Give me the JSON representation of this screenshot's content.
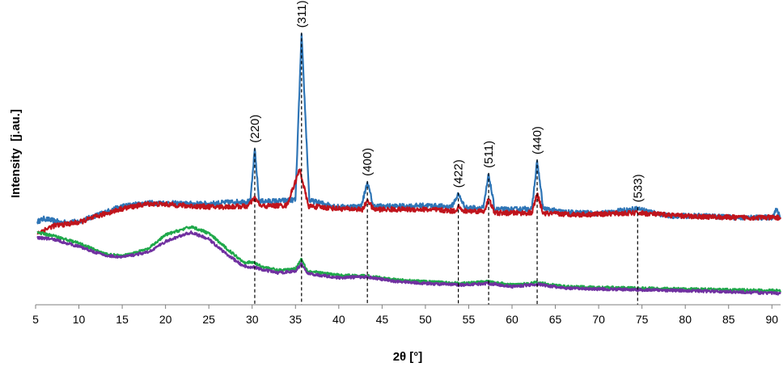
{
  "chart_data": {
    "type": "line",
    "xlabel": "2θ [°]",
    "ylabel": "Intensity  [j.au.]",
    "xlim": [
      5,
      91
    ],
    "ylim": [
      0,
      100
    ],
    "x_ticks": [
      5,
      10,
      15,
      20,
      25,
      30,
      35,
      40,
      45,
      50,
      55,
      60,
      65,
      70,
      75,
      80,
      85,
      90
    ],
    "y_tick_labels": false,
    "grid": false,
    "legend": "none",
    "peaks": [
      {
        "label": "(220)",
        "x": 30.3
      },
      {
        "label": "(311)",
        "x": 35.7
      },
      {
        "label": "(400)",
        "x": 43.3
      },
      {
        "label": "(422)",
        "x": 53.8
      },
      {
        "label": "(511)",
        "x": 57.3
      },
      {
        "label": "(440)",
        "x": 62.9
      },
      {
        "label": "(533)",
        "x": 74.5
      }
    ],
    "series": [
      {
        "color": "#2E75B6",
        "points": [
          [
            5.2,
            30.7
          ],
          [
            6,
            31.8
          ],
          [
            8,
            30.4
          ],
          [
            10,
            30.7
          ],
          [
            12,
            33
          ],
          [
            15,
            36.4
          ],
          [
            18,
            37.6
          ],
          [
            20,
            37.6
          ],
          [
            22,
            37.3
          ],
          [
            25,
            37.3
          ],
          [
            28,
            38
          ],
          [
            29.8,
            38.2
          ],
          [
            30.3,
            57.5
          ],
          [
            30.8,
            38.2
          ],
          [
            33,
            38.3
          ],
          [
            35,
            38.8
          ],
          [
            35.7,
            100
          ],
          [
            36.6,
            38.5
          ],
          [
            40,
            36.1
          ],
          [
            42.6,
            36.4
          ],
          [
            43.3,
            45.2
          ],
          [
            44,
            36.4
          ],
          [
            48,
            36.4
          ],
          [
            50,
            36.7
          ],
          [
            53,
            36.1
          ],
          [
            53.8,
            40.9
          ],
          [
            54.6,
            35.8
          ],
          [
            56.7,
            35.8
          ],
          [
            57.3,
            48.2
          ],
          [
            58,
            35.2
          ],
          [
            60,
            35.2
          ],
          [
            62.3,
            35.5
          ],
          [
            62.9,
            53.2
          ],
          [
            63.6,
            35.5
          ],
          [
            66,
            34.2
          ],
          [
            70,
            33.7
          ],
          [
            74.5,
            35.5
          ],
          [
            78,
            32.8
          ],
          [
            82,
            32.8
          ],
          [
            86,
            32.2
          ],
          [
            90,
            32.2
          ],
          [
            90.5,
            35.2
          ],
          [
            91,
            32.2
          ]
        ]
      },
      {
        "color": "#C0141C",
        "points": [
          [
            5.2,
            26.4
          ],
          [
            7,
            29.1
          ],
          [
            10,
            30.4
          ],
          [
            13,
            33.6
          ],
          [
            15,
            35.5
          ],
          [
            18,
            37.3
          ],
          [
            20,
            37.1
          ],
          [
            23,
            36.4
          ],
          [
            26,
            36.1
          ],
          [
            29.5,
            36.4
          ],
          [
            30.3,
            39.4
          ],
          [
            31,
            36.4
          ],
          [
            34,
            36.7
          ],
          [
            35.5,
            50
          ],
          [
            36.5,
            36.4
          ],
          [
            40,
            35.5
          ],
          [
            42.8,
            35.2
          ],
          [
            43.3,
            38.8
          ],
          [
            44,
            35.2
          ],
          [
            50,
            35.2
          ],
          [
            53.5,
            34.6
          ],
          [
            53.8,
            36.7
          ],
          [
            54.2,
            34.6
          ],
          [
            56.8,
            34.6
          ],
          [
            57.3,
            39.1
          ],
          [
            58,
            33.9
          ],
          [
            62.3,
            33.9
          ],
          [
            62.9,
            40.9
          ],
          [
            63.6,
            33.7
          ],
          [
            68,
            33.3
          ],
          [
            74.5,
            33.9
          ],
          [
            80,
            32.7
          ],
          [
            86,
            32.2
          ],
          [
            91,
            32.2
          ]
        ]
      },
      {
        "color": "#1FA84A",
        "points": [
          [
            5.2,
            26.7
          ],
          [
            7,
            25.5
          ],
          [
            10,
            22.7
          ],
          [
            13,
            18.8
          ],
          [
            15,
            17.9
          ],
          [
            18,
            20.6
          ],
          [
            20,
            25.8
          ],
          [
            22,
            27.9
          ],
          [
            23,
            28.8
          ],
          [
            25,
            26.4
          ],
          [
            27,
            20.9
          ],
          [
            29,
            15.8
          ],
          [
            30.3,
            15.5
          ],
          [
            31,
            14.2
          ],
          [
            33,
            12.7
          ],
          [
            35,
            13.3
          ],
          [
            35.7,
            17
          ],
          [
            36.4,
            12.4
          ],
          [
            40,
            10.9
          ],
          [
            43.3,
            10.6
          ],
          [
            46,
            9.4
          ],
          [
            50,
            8.5
          ],
          [
            54,
            7.9
          ],
          [
            57.3,
            8.5
          ],
          [
            60,
            7.3
          ],
          [
            62.9,
            8.2
          ],
          [
            66,
            6.7
          ],
          [
            70,
            6.4
          ],
          [
            75,
            6.1
          ],
          [
            80,
            5.8
          ],
          [
            85,
            5.5
          ],
          [
            91,
            5.2
          ]
        ]
      },
      {
        "color": "#7030A0",
        "points": [
          [
            5.2,
            24.8
          ],
          [
            7,
            24.2
          ],
          [
            10,
            21.5
          ],
          [
            13,
            18.2
          ],
          [
            15,
            17.6
          ],
          [
            18,
            19.4
          ],
          [
            20,
            23.3
          ],
          [
            22,
            25.8
          ],
          [
            23,
            26.7
          ],
          [
            25,
            24.2
          ],
          [
            27,
            18.8
          ],
          [
            29,
            14.2
          ],
          [
            30.3,
            13.9
          ],
          [
            31,
            13
          ],
          [
            33,
            11.8
          ],
          [
            35,
            12.4
          ],
          [
            35.7,
            15.2
          ],
          [
            36.4,
            11.5
          ],
          [
            40,
            10
          ],
          [
            43.3,
            10.3
          ],
          [
            46,
            8.8
          ],
          [
            50,
            7.9
          ],
          [
            54,
            7.3
          ],
          [
            57.3,
            7.9
          ],
          [
            60,
            6.7
          ],
          [
            62.9,
            7.6
          ],
          [
            66,
            6.1
          ],
          [
            70,
            5.8
          ],
          [
            75,
            5.5
          ],
          [
            80,
            5.2
          ],
          [
            85,
            4.8
          ],
          [
            91,
            4.2
          ]
        ]
      }
    ]
  }
}
